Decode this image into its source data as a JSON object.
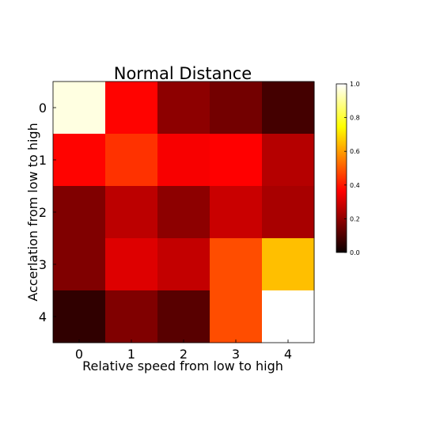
{
  "chart_data": {
    "type": "heatmap",
    "title": "Normal Distance",
    "xlabel": "Relative speed from low to high",
    "ylabel": "Accerlation from low to high",
    "x_categories": [
      "0",
      "1",
      "2",
      "3",
      "4"
    ],
    "y_categories": [
      "0",
      "1",
      "2",
      "3",
      "4"
    ],
    "colormap": "hot",
    "color_range": [
      0.0,
      1.0
    ],
    "colorbar_ticks": [
      "0.0",
      "0.2",
      "0.4",
      "0.6",
      "0.8",
      "1.0"
    ],
    "colorbar_tick_values": [
      0.0,
      0.2,
      0.4,
      0.6,
      0.8,
      1.0
    ],
    "values": [
      [
        0.97,
        0.37,
        0.17,
        0.13,
        0.06
      ],
      [
        0.37,
        0.44,
        0.33,
        0.36,
        0.23
      ],
      [
        0.15,
        0.24,
        0.17,
        0.26,
        0.21
      ],
      [
        0.15,
        0.29,
        0.25,
        0.48,
        0.65
      ],
      [
        0.03,
        0.15,
        0.09,
        0.48,
        1.0
      ]
    ],
    "grid": false,
    "colorbar_position": "right"
  }
}
